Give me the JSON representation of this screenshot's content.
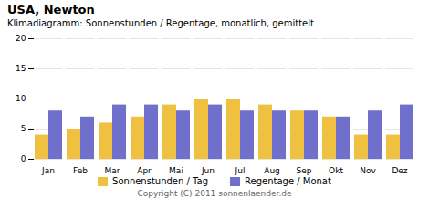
{
  "chart_data": {
    "type": "bar",
    "title": "USA,  Newton",
    "subtitle": "Klimadiagramm: Sonnenstunden / Regentage, monatlich, gemittelt",
    "caption": "Copyright (C) 2011 sonnenlaender.de",
    "categories": [
      "Jan",
      "Feb",
      "Mar",
      "Apr",
      "Mai",
      "Jun",
      "Jul",
      "Aug",
      "Sep",
      "Okt",
      "Nov",
      "Dez"
    ],
    "series": [
      {
        "name": "Sonnenstunden / Tag",
        "color": "#f0c040",
        "values": [
          4,
          5,
          6,
          7,
          9,
          10,
          10,
          9,
          8,
          7,
          4,
          4
        ]
      },
      {
        "name": "Regentage / Monat",
        "color": "#7070cc",
        "values": [
          8,
          7,
          9,
          9,
          8,
          9,
          8,
          8,
          8,
          7,
          8,
          9
        ]
      }
    ],
    "ylim": [
      0,
      20
    ],
    "yticks": [
      0,
      5,
      10,
      15,
      20
    ],
    "grid": true,
    "legend": "bottom"
  }
}
